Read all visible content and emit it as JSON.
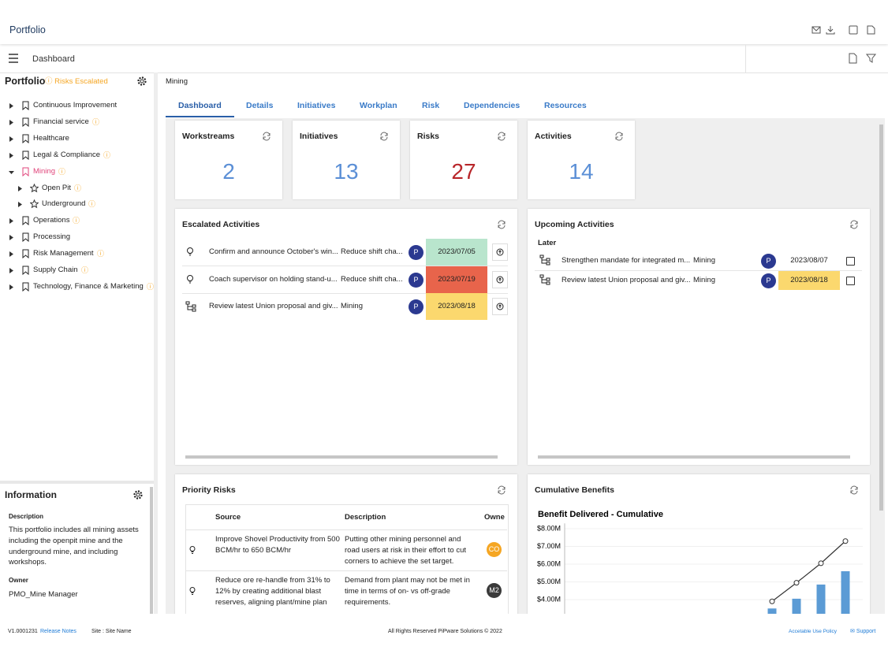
{
  "header": {
    "title": "Portfolio"
  },
  "toolbar": {
    "title": "Dashboard"
  },
  "sidebar": {
    "title": "Portfolio",
    "status": "Risks Escalated",
    "items": [
      {
        "label": "Continuous Improvement",
        "warn": false,
        "level": 0
      },
      {
        "label": "Financial service",
        "warn": true,
        "level": 0
      },
      {
        "label": "Healthcare",
        "warn": false,
        "level": 0
      },
      {
        "label": "Legal & Compliance",
        "warn": true,
        "level": 0
      },
      {
        "label": "Mining",
        "warn": true,
        "level": 0,
        "selected": true
      },
      {
        "label": "Open Pit",
        "warn": true,
        "level": 1
      },
      {
        "label": "Underground",
        "warn": true,
        "level": 1
      },
      {
        "label": "Operations",
        "warn": true,
        "level": 0
      },
      {
        "label": "Processing",
        "warn": false,
        "level": 0
      },
      {
        "label": "Risk Management",
        "warn": true,
        "level": 0
      },
      {
        "label": "Supply Chain",
        "warn": true,
        "level": 0
      },
      {
        "label": "Technology, Finance & Marketing",
        "warn": true,
        "level": 0
      }
    ]
  },
  "information": {
    "title": "Information",
    "description_label": "Description",
    "description": "This portfolio includes all mining assets including the openpit mine and the underground mine, and including workshops.",
    "owner_label": "Owner",
    "owner": "PMO_Mine Manager"
  },
  "breadcrumb": "Mining",
  "tabs": [
    "Dashboard",
    "Details",
    "Initiatives",
    "Workplan",
    "Risk",
    "Dependencies",
    "Resources"
  ],
  "kpis": [
    {
      "label": "Workstreams",
      "value": 2,
      "color": "#5b8fd6"
    },
    {
      "label": "Initiatives",
      "value": 13,
      "color": "#5b8fd6"
    },
    {
      "label": "Risks",
      "value": 27,
      "color": "#b8262a"
    },
    {
      "label": "Activities",
      "value": 14,
      "color": "#5b8fd6"
    }
  ],
  "escalated": {
    "title": "Escalated Activities",
    "rows": [
      {
        "icon": "bulb",
        "title": "Confirm and announce October's win...",
        "initiative": "Reduce shift cha...",
        "avatar": "P",
        "date": "2023/07/05",
        "date_color": "#b9e5cd"
      },
      {
        "icon": "bulb",
        "title": "Coach supervisor on holding stand-u...",
        "initiative": "Reduce shift cha...",
        "avatar": "P",
        "date": "2023/07/19",
        "date_color": "#e8644b"
      },
      {
        "icon": "tree",
        "title": "Review latest Union proposal and giv...",
        "initiative": "Mining",
        "avatar": "P",
        "date": "2023/08/18",
        "date_color": "#fbd86e"
      }
    ]
  },
  "upcoming": {
    "title": "Upcoming Activities",
    "group": "Later",
    "rows": [
      {
        "title": "Strengthen mandate for integrated m...",
        "initiative": "Mining",
        "avatar": "P",
        "date": "2023/08/07",
        "date_color": "#ffffff"
      },
      {
        "title": "Review latest Union proposal and giv...",
        "initiative": "Mining",
        "avatar": "P",
        "date": "2023/08/18",
        "date_color": "#fbd86e"
      }
    ]
  },
  "risks": {
    "title": "Priority Risks",
    "columns": [
      "Source",
      "Description",
      "Owne"
    ],
    "rows": [
      {
        "source": "Improve Shovel Productivity from 500 BCM/hr to 650 BCM/hr",
        "description": "Putting other mining personnel and road users at risk in their effort to cut corners to achieve the set target.",
        "owner": "CO",
        "owner_color": "#f5a623"
      },
      {
        "source": "Reduce ore re-handle from 31% to 12% by creating additional blast reserves, aligning plant/mine plan",
        "description": "Demand from plant may not be met in time in terms of on- vs off-grade requirements.",
        "owner": "M2",
        "owner_color": "#3a3a3a"
      }
    ]
  },
  "benefits": {
    "title": "Cumulative Benefits"
  },
  "chart_data": {
    "type": "bar",
    "title": "Benefit Delivered - Cumulative",
    "categories": [
      null,
      null,
      null,
      null
    ],
    "series": [
      {
        "color": "#5b9bd5",
        "values": [
          3.5,
          4.05,
          4.85,
          5.6
        ]
      },
      {
        "type": "line",
        "color": "#333333",
        "values": [
          3.9,
          4.95,
          6.05,
          7.3
        ]
      }
    ],
    "ylim": [
      3.2,
      8.3
    ],
    "yticks": [
      {
        "value": 4,
        "label": "$4.00M"
      },
      {
        "value": 5,
        "label": "$5.00M"
      },
      {
        "value": 6,
        "label": "$6.00M"
      },
      {
        "value": 7,
        "label": "$7.00M"
      },
      {
        "value": 8,
        "label": "$8.00M"
      }
    ],
    "grid": true
  },
  "footer": {
    "version": "V1.0001231",
    "release_notes": "Release Notes",
    "site": "Site : Site Name",
    "copyright": "All Rights Reserved PiPware Solutions © 2022",
    "policy": "Accetable Use Policy",
    "support": "Support"
  }
}
